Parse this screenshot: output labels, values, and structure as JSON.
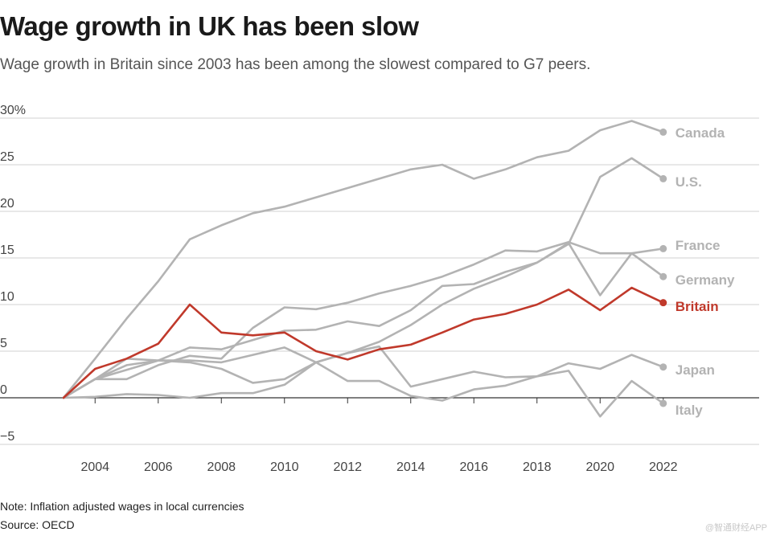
{
  "title": "Wage growth in UK has been slow",
  "subtitle": "Wage growth in Britain since 2003 has been among the slowest compared to G7 peers.",
  "note": "Note: Inflation adjusted wages in local currencies",
  "source": "Source: OECD",
  "watermark": "@智通财经APP",
  "colors": {
    "highlight": "#c0392b",
    "peer": "#b3b3b3",
    "grid": "#d0d0d0",
    "zero": "#333333",
    "tick": "#444444"
  },
  "chart_data": {
    "type": "line",
    "title": "Wage growth in UK has been slow",
    "xlabel": "",
    "ylabel": "",
    "x": [
      2003,
      2004,
      2005,
      2006,
      2007,
      2008,
      2009,
      2010,
      2011,
      2012,
      2013,
      2014,
      2015,
      2016,
      2017,
      2018,
      2019,
      2020,
      2021,
      2022
    ],
    "xlim": [
      2002,
      2025
    ],
    "ylim": [
      -5,
      30
    ],
    "x_ticks": [
      2004,
      2006,
      2008,
      2010,
      2012,
      2014,
      2016,
      2018,
      2020,
      2022
    ],
    "x_tick_labels": [
      "2004",
      "2006",
      "2008",
      "2010",
      "2012",
      "2014",
      "2016",
      "2018",
      "2020",
      "2022"
    ],
    "y_ticks": [
      -5,
      0,
      5,
      10,
      15,
      20,
      25,
      30
    ],
    "y_tick_labels": [
      "−5",
      "0",
      "5",
      "10",
      "15",
      "20",
      "25",
      "30%"
    ],
    "grid": true,
    "series": [
      {
        "name": "Canada",
        "highlight": false,
        "values": [
          0,
          4.2,
          8.5,
          12.5,
          17.0,
          18.5,
          19.8,
          20.5,
          21.5,
          22.5,
          23.5,
          24.5,
          25.0,
          23.5,
          24.5,
          25.8,
          26.5,
          28.7,
          29.7,
          28.5
        ]
      },
      {
        "name": "U.S.",
        "highlight": false,
        "values": [
          0,
          2.0,
          3.0,
          4.0,
          5.4,
          5.2,
          6.2,
          7.2,
          7.3,
          8.2,
          7.7,
          9.4,
          12.0,
          12.2,
          13.5,
          14.5,
          16.5,
          23.7,
          25.7,
          23.5
        ]
      },
      {
        "name": "France",
        "highlight": false,
        "values": [
          0,
          2.0,
          2.0,
          3.5,
          4.5,
          4.2,
          7.5,
          9.7,
          9.5,
          10.2,
          11.2,
          12.0,
          13.0,
          14.3,
          15.8,
          15.7,
          16.7,
          15.5,
          15.5,
          16.0
        ]
      },
      {
        "name": "Germany",
        "highlight": false,
        "values": [
          0,
          2.0,
          3.5,
          4.0,
          4.0,
          3.8,
          4.6,
          5.4,
          3.8,
          4.8,
          6.0,
          7.8,
          10.0,
          11.7,
          13.0,
          14.5,
          16.6,
          11.0,
          15.5,
          13.0
        ]
      },
      {
        "name": "Britain",
        "highlight": true,
        "values": [
          0,
          3.1,
          4.2,
          5.8,
          10.0,
          7.0,
          6.7,
          7.0,
          5.0,
          4.1,
          5.2,
          5.7,
          7.0,
          8.4,
          9.0,
          10.0,
          11.6,
          9.4,
          11.8,
          10.2
        ]
      },
      {
        "name": "Japan",
        "highlight": false,
        "values": [
          0,
          0.1,
          0.4,
          0.3,
          0.0,
          0.5,
          0.5,
          1.4,
          3.8,
          4.8,
          5.5,
          1.2,
          2.0,
          2.8,
          2.2,
          2.3,
          3.7,
          3.1,
          4.6,
          3.3
        ]
      },
      {
        "name": "Italy",
        "highlight": false,
        "values": [
          0,
          2.0,
          4.2,
          4.0,
          3.8,
          3.1,
          1.6,
          2.0,
          3.8,
          1.8,
          1.8,
          0.2,
          -0.3,
          0.9,
          1.3,
          2.3,
          2.9,
          -2.0,
          1.8,
          -0.6
        ]
      }
    ]
  }
}
